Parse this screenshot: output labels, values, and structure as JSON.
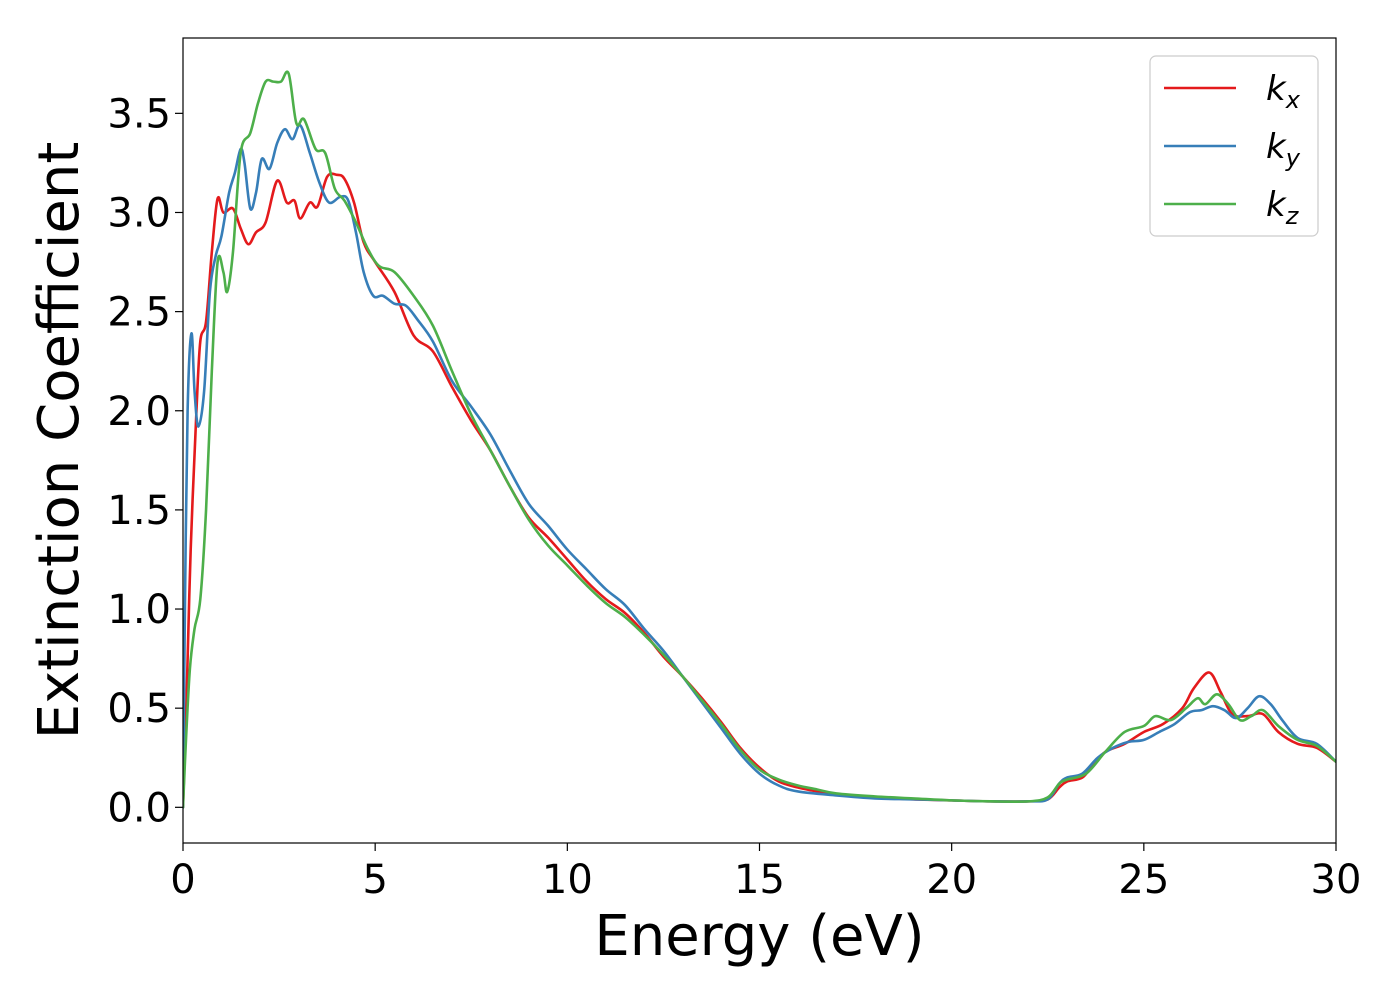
{
  "chart_data": {
    "type": "line",
    "xlabel": "Energy (eV)",
    "ylabel": "Extinction Coefficient",
    "xlim": [
      0,
      30
    ],
    "ylim": [
      -0.18,
      3.88
    ],
    "xticks": [
      0,
      5,
      10,
      15,
      20,
      25,
      30
    ],
    "xtick_labels": [
      "0",
      "5",
      "10",
      "15",
      "20",
      "25",
      "30"
    ],
    "yticks": [
      0.0,
      0.5,
      1.0,
      1.5,
      2.0,
      2.5,
      3.0,
      3.5
    ],
    "ytick_labels": [
      "0.0",
      "0.5",
      "1.0",
      "1.5",
      "2.0",
      "2.5",
      "3.0",
      "3.5"
    ],
    "grid": false,
    "legend_position": "top-right",
    "series": [
      {
        "name": "k",
        "sub": "x",
        "color": "#e41a1c",
        "points": [
          [
            0,
            0.0
          ],
          [
            0.1,
            0.6
          ],
          [
            0.2,
            1.3
          ],
          [
            0.35,
            2.0
          ],
          [
            0.45,
            2.35
          ],
          [
            0.6,
            2.45
          ],
          [
            0.75,
            2.8
          ],
          [
            0.9,
            3.07
          ],
          [
            1.05,
            3.0
          ],
          [
            1.3,
            3.02
          ],
          [
            1.5,
            2.92
          ],
          [
            1.7,
            2.84
          ],
          [
            1.9,
            2.9
          ],
          [
            2.15,
            2.95
          ],
          [
            2.45,
            3.16
          ],
          [
            2.7,
            3.05
          ],
          [
            2.9,
            3.06
          ],
          [
            3.05,
            2.97
          ],
          [
            3.3,
            3.05
          ],
          [
            3.5,
            3.03
          ],
          [
            3.75,
            3.18
          ],
          [
            4.0,
            3.19
          ],
          [
            4.2,
            3.17
          ],
          [
            4.45,
            3.05
          ],
          [
            4.7,
            2.85
          ],
          [
            5.0,
            2.75
          ],
          [
            5.5,
            2.6
          ],
          [
            6.0,
            2.38
          ],
          [
            6.5,
            2.3
          ],
          [
            7.0,
            2.12
          ],
          [
            7.5,
            1.95
          ],
          [
            8.0,
            1.8
          ],
          [
            8.5,
            1.62
          ],
          [
            9.0,
            1.46
          ],
          [
            9.5,
            1.36
          ],
          [
            10.0,
            1.25
          ],
          [
            10.5,
            1.14
          ],
          [
            11.0,
            1.05
          ],
          [
            11.5,
            0.98
          ],
          [
            12.0,
            0.88
          ],
          [
            12.5,
            0.76
          ],
          [
            13.0,
            0.66
          ],
          [
            13.5,
            0.55
          ],
          [
            14.0,
            0.43
          ],
          [
            14.5,
            0.3
          ],
          [
            15.0,
            0.2
          ],
          [
            15.5,
            0.13
          ],
          [
            16.0,
            0.1
          ],
          [
            16.5,
            0.08
          ],
          [
            17.0,
            0.065
          ],
          [
            18.0,
            0.05
          ],
          [
            19.0,
            0.04
          ],
          [
            20.0,
            0.035
          ],
          [
            21.0,
            0.03
          ],
          [
            22.0,
            0.03
          ],
          [
            22.5,
            0.04
          ],
          [
            22.8,
            0.1
          ],
          [
            23.0,
            0.13
          ],
          [
            23.4,
            0.15
          ],
          [
            23.7,
            0.22
          ],
          [
            24.0,
            0.28
          ],
          [
            24.5,
            0.32
          ],
          [
            25.0,
            0.38
          ],
          [
            25.5,
            0.42
          ],
          [
            26.0,
            0.5
          ],
          [
            26.3,
            0.6
          ],
          [
            26.7,
            0.68
          ],
          [
            27.0,
            0.58
          ],
          [
            27.3,
            0.47
          ],
          [
            27.7,
            0.46
          ],
          [
            28.1,
            0.47
          ],
          [
            28.5,
            0.38
          ],
          [
            29.0,
            0.32
          ],
          [
            29.5,
            0.3
          ],
          [
            30.0,
            0.23
          ]
        ]
      },
      {
        "name": "k",
        "sub": "y",
        "color": "#377eb8",
        "points": [
          [
            0,
            0.0
          ],
          [
            0.05,
            1.0
          ],
          [
            0.12,
            2.0
          ],
          [
            0.22,
            2.39
          ],
          [
            0.3,
            2.1
          ],
          [
            0.4,
            1.92
          ],
          [
            0.55,
            2.1
          ],
          [
            0.7,
            2.6
          ],
          [
            0.85,
            2.78
          ],
          [
            1.0,
            2.88
          ],
          [
            1.2,
            3.1
          ],
          [
            1.35,
            3.2
          ],
          [
            1.5,
            3.32
          ],
          [
            1.6,
            3.25
          ],
          [
            1.75,
            3.02
          ],
          [
            1.9,
            3.1
          ],
          [
            2.05,
            3.27
          ],
          [
            2.25,
            3.22
          ],
          [
            2.45,
            3.35
          ],
          [
            2.65,
            3.42
          ],
          [
            2.85,
            3.37
          ],
          [
            3.05,
            3.44
          ],
          [
            3.3,
            3.3
          ],
          [
            3.55,
            3.15
          ],
          [
            3.8,
            3.05
          ],
          [
            4.1,
            3.08
          ],
          [
            4.3,
            3.06
          ],
          [
            4.5,
            2.9
          ],
          [
            4.7,
            2.7
          ],
          [
            4.95,
            2.58
          ],
          [
            5.2,
            2.58
          ],
          [
            5.5,
            2.54
          ],
          [
            5.8,
            2.53
          ],
          [
            6.1,
            2.46
          ],
          [
            6.5,
            2.35
          ],
          [
            7.0,
            2.15
          ],
          [
            7.5,
            2.02
          ],
          [
            8.0,
            1.88
          ],
          [
            8.5,
            1.7
          ],
          [
            9.0,
            1.53
          ],
          [
            9.5,
            1.42
          ],
          [
            10.0,
            1.3
          ],
          [
            10.5,
            1.2
          ],
          [
            11.0,
            1.1
          ],
          [
            11.5,
            1.02
          ],
          [
            12.0,
            0.9
          ],
          [
            12.5,
            0.79
          ],
          [
            13.0,
            0.66
          ],
          [
            13.5,
            0.53
          ],
          [
            14.0,
            0.4
          ],
          [
            14.5,
            0.27
          ],
          [
            15.0,
            0.17
          ],
          [
            15.5,
            0.11
          ],
          [
            16.0,
            0.08
          ],
          [
            17.0,
            0.06
          ],
          [
            18.0,
            0.045
          ],
          [
            19.0,
            0.04
          ],
          [
            20.0,
            0.035
          ],
          [
            21.0,
            0.03
          ],
          [
            22.0,
            0.03
          ],
          [
            22.5,
            0.04
          ],
          [
            22.8,
            0.12
          ],
          [
            23.0,
            0.15
          ],
          [
            23.4,
            0.17
          ],
          [
            23.8,
            0.25
          ],
          [
            24.2,
            0.3
          ],
          [
            24.6,
            0.33
          ],
          [
            25.0,
            0.34
          ],
          [
            25.4,
            0.38
          ],
          [
            25.8,
            0.42
          ],
          [
            26.2,
            0.48
          ],
          [
            26.5,
            0.49
          ],
          [
            26.8,
            0.51
          ],
          [
            27.1,
            0.49
          ],
          [
            27.4,
            0.45
          ],
          [
            27.7,
            0.5
          ],
          [
            28.0,
            0.56
          ],
          [
            28.3,
            0.52
          ],
          [
            28.6,
            0.44
          ],
          [
            29.0,
            0.35
          ],
          [
            29.5,
            0.32
          ],
          [
            30.0,
            0.23
          ]
        ]
      },
      {
        "name": "k",
        "sub": "z",
        "color": "#4daf4a",
        "points": [
          [
            0,
            0.0
          ],
          [
            0.08,
            0.35
          ],
          [
            0.18,
            0.7
          ],
          [
            0.3,
            0.9
          ],
          [
            0.45,
            1.05
          ],
          [
            0.6,
            1.5
          ],
          [
            0.75,
            2.2
          ],
          [
            0.9,
            2.75
          ],
          [
            1.05,
            2.7
          ],
          [
            1.15,
            2.6
          ],
          [
            1.3,
            2.8
          ],
          [
            1.5,
            3.3
          ],
          [
            1.75,
            3.4
          ],
          [
            1.95,
            3.55
          ],
          [
            2.15,
            3.66
          ],
          [
            2.35,
            3.66
          ],
          [
            2.55,
            3.66
          ],
          [
            2.75,
            3.7
          ],
          [
            2.95,
            3.45
          ],
          [
            3.15,
            3.47
          ],
          [
            3.45,
            3.32
          ],
          [
            3.7,
            3.3
          ],
          [
            3.95,
            3.12
          ],
          [
            4.2,
            3.06
          ],
          [
            4.5,
            2.95
          ],
          [
            4.8,
            2.82
          ],
          [
            5.1,
            2.73
          ],
          [
            5.5,
            2.7
          ],
          [
            6.0,
            2.58
          ],
          [
            6.5,
            2.43
          ],
          [
            7.0,
            2.2
          ],
          [
            7.5,
            1.98
          ],
          [
            8.0,
            1.8
          ],
          [
            8.5,
            1.62
          ],
          [
            9.0,
            1.45
          ],
          [
            9.5,
            1.32
          ],
          [
            10.0,
            1.22
          ],
          [
            10.5,
            1.12
          ],
          [
            11.0,
            1.03
          ],
          [
            11.5,
            0.96
          ],
          [
            12.0,
            0.87
          ],
          [
            12.5,
            0.77
          ],
          [
            13.0,
            0.66
          ],
          [
            13.5,
            0.54
          ],
          [
            14.0,
            0.42
          ],
          [
            14.5,
            0.29
          ],
          [
            15.0,
            0.19
          ],
          [
            15.5,
            0.14
          ],
          [
            16.0,
            0.11
          ],
          [
            16.5,
            0.09
          ],
          [
            17.0,
            0.07
          ],
          [
            18.0,
            0.055
          ],
          [
            19.0,
            0.045
          ],
          [
            20.0,
            0.035
          ],
          [
            21.0,
            0.03
          ],
          [
            22.0,
            0.03
          ],
          [
            22.5,
            0.05
          ],
          [
            22.8,
            0.12
          ],
          [
            23.0,
            0.14
          ],
          [
            23.5,
            0.17
          ],
          [
            24.0,
            0.28
          ],
          [
            24.5,
            0.38
          ],
          [
            25.0,
            0.41
          ],
          [
            25.3,
            0.46
          ],
          [
            25.7,
            0.44
          ],
          [
            26.1,
            0.5
          ],
          [
            26.4,
            0.55
          ],
          [
            26.6,
            0.52
          ],
          [
            26.9,
            0.57
          ],
          [
            27.2,
            0.52
          ],
          [
            27.5,
            0.44
          ],
          [
            27.8,
            0.46
          ],
          [
            28.1,
            0.49
          ],
          [
            28.5,
            0.41
          ],
          [
            29.0,
            0.34
          ],
          [
            29.5,
            0.31
          ],
          [
            30.0,
            0.23
          ]
        ]
      }
    ]
  }
}
